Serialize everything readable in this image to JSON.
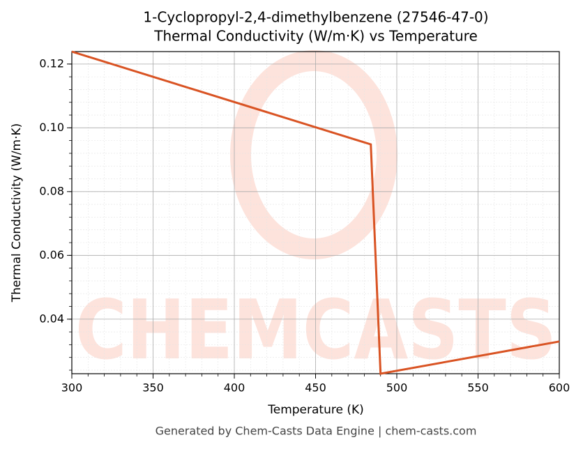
{
  "chart_data": {
    "type": "line",
    "title": "1-Cyclopropyl-2,4-dimethylbenzene (27546-47-0)",
    "subtitle": "Thermal Conductivity (W/m·K) vs Temperature",
    "x_label": "Temperature (K)",
    "y_label": "Thermal Conductivity (W/m·K)",
    "footer": "Generated by Chem-Casts Data Engine | chem-casts.com",
    "watermark": "CHEMCASTS",
    "x": [
      300,
      484,
      490,
      600
    ],
    "series": [
      {
        "name": "Thermal Conductivity",
        "color": "#d95323",
        "values": [
          0.1239,
          0.0948,
          0.0229,
          0.033
        ]
      }
    ],
    "xlim": [
      300,
      600
    ],
    "xticks": [
      300,
      350,
      400,
      450,
      500,
      550,
      600
    ],
    "ylim": [
      0.0229,
      0.1239
    ],
    "yticks": [
      {
        "value": 0.04,
        "label": "0.04"
      },
      {
        "value": 0.06,
        "label": "0.06"
      },
      {
        "value": 0.08,
        "label": "0.08"
      },
      {
        "value": 0.1,
        "label": "0.10"
      },
      {
        "value": 0.12,
        "label": "0.12"
      }
    ],
    "grid": true,
    "minor_divisions": 5
  }
}
